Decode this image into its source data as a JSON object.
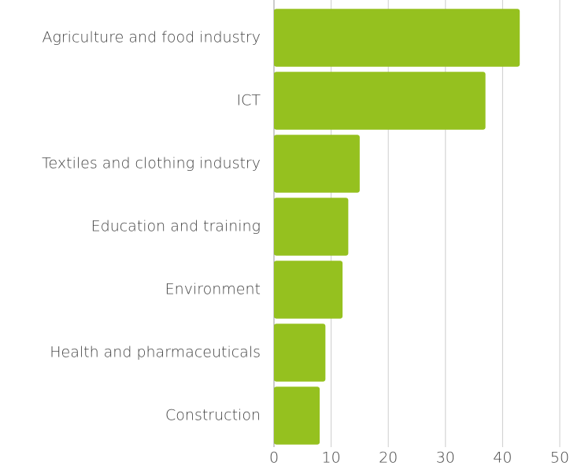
{
  "chart_data": {
    "type": "bar",
    "orientation": "horizontal",
    "categories": [
      "Agriculture and food industry",
      "ICT",
      "Textiles and clothing industry",
      "Education and training",
      "Environment",
      "Health and pharmaceuticals",
      "Construction"
    ],
    "values": [
      43,
      37,
      15,
      13,
      12,
      9,
      8
    ],
    "color": "#95c11f",
    "xlim": [
      0,
      50
    ],
    "xticks": [
      0,
      10,
      20,
      30,
      40,
      50
    ],
    "grid": true
  }
}
